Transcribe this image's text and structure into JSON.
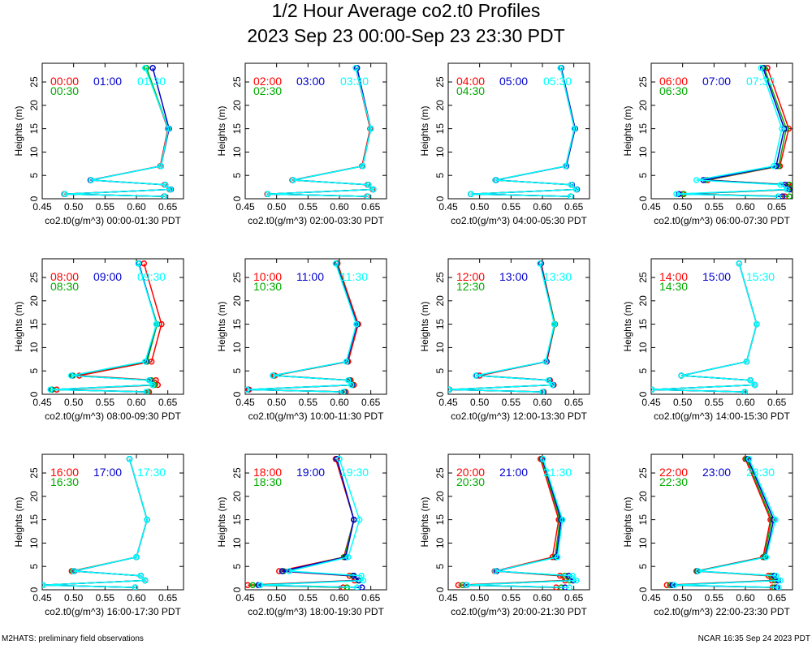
{
  "page": {
    "title_line1": "1/2 Hour Average co2.t0 Profiles",
    "title_line2": "2023 Sep 23 00:00-Sep 23 23:30 PDT",
    "footer_left": "M2HATS: preliminary field observations",
    "footer_right": "NCAR 16:35 Sep 24 2023 PDT"
  },
  "colors": {
    "c1": "#ff0000",
    "c2": "#0000cc",
    "c3": "#00ffff",
    "c4": "#00aa00"
  },
  "chart_data": [
    {
      "type": "line",
      "xlabel": "co2.t0(g/m^3) 00:00-01:30 PDT",
      "ylabel": "Heights (m)",
      "xlim": [
        0.45,
        0.675
      ],
      "ylim": [
        0,
        29
      ],
      "xticks": [
        "0.45",
        "0.50",
        "0.55",
        "0.60",
        "0.65"
      ],
      "yticks": [
        "0",
        "5",
        "10",
        "15",
        "20",
        "25"
      ],
      "heights": [
        0.5,
        1,
        2,
        3,
        4,
        7,
        15,
        28
      ],
      "series": [
        {
          "name": "00:00",
          "color": "red",
          "values": [
            0.644,
            0.485,
            0.653,
            0.645,
            0.527,
            0.638,
            0.65,
            0.615
          ]
        },
        {
          "name": "00:30",
          "color": "green",
          "values": [
            0.645,
            0.486,
            0.654,
            0.646,
            0.528,
            0.639,
            0.651,
            0.616
          ]
        },
        {
          "name": "01:00",
          "color": "blue",
          "values": [
            0.645,
            0.486,
            0.655,
            0.646,
            0.527,
            0.639,
            0.652,
            0.626
          ]
        },
        {
          "name": "01:30",
          "color": "cyan",
          "values": [
            0.645,
            0.486,
            0.654,
            0.646,
            0.528,
            0.639,
            0.651,
            0.614
          ]
        }
      ]
    },
    {
      "type": "line",
      "xlabel": "co2.t0(g/m^3) 02:00-03:30 PDT",
      "ylabel": "Heights (m)",
      "xlim": [
        0.45,
        0.675
      ],
      "ylim": [
        0,
        29
      ],
      "xticks": [
        "0.45",
        "0.50",
        "0.55",
        "0.60",
        "0.65"
      ],
      "yticks": [
        "0",
        "5",
        "10",
        "15",
        "20",
        "25"
      ],
      "heights": [
        0.5,
        1,
        2,
        3,
        4,
        7,
        15,
        28
      ],
      "series": [
        {
          "name": "02:00",
          "color": "red",
          "values": [
            0.644,
            0.485,
            0.653,
            0.645,
            0.525,
            0.636,
            0.649,
            0.626
          ]
        },
        {
          "name": "02:30",
          "color": "green",
          "values": [
            0.645,
            0.486,
            0.654,
            0.646,
            0.526,
            0.637,
            0.65,
            0.627
          ]
        },
        {
          "name": "03:00",
          "color": "blue",
          "values": [
            0.645,
            0.486,
            0.654,
            0.646,
            0.526,
            0.637,
            0.65,
            0.628
          ]
        },
        {
          "name": "03:30",
          "color": "cyan",
          "values": [
            0.645,
            0.486,
            0.654,
            0.646,
            0.526,
            0.637,
            0.65,
            0.626
          ]
        }
      ]
    },
    {
      "type": "line",
      "xlabel": "co2.t0(g/m^3) 04:00-05:30 PDT",
      "ylabel": "Heights (m)",
      "xlim": [
        0.45,
        0.675
      ],
      "ylim": [
        0,
        29
      ],
      "xticks": [
        "0.45",
        "0.50",
        "0.55",
        "0.60",
        "0.65"
      ],
      "yticks": [
        "0",
        "5",
        "10",
        "15",
        "20",
        "25"
      ],
      "heights": [
        0.5,
        1,
        2,
        3,
        4,
        7,
        15,
        28
      ],
      "series": [
        {
          "name": "04:00",
          "color": "red",
          "values": [
            0.645,
            0.486,
            0.654,
            0.646,
            0.525,
            0.637,
            0.651,
            0.629
          ]
        },
        {
          "name": "04:30",
          "color": "green",
          "values": [
            0.645,
            0.486,
            0.655,
            0.646,
            0.525,
            0.638,
            0.652,
            0.63
          ]
        },
        {
          "name": "05:00",
          "color": "blue",
          "values": [
            0.645,
            0.486,
            0.655,
            0.647,
            0.526,
            0.638,
            0.652,
            0.63
          ]
        },
        {
          "name": "05:30",
          "color": "cyan",
          "values": [
            0.645,
            0.486,
            0.654,
            0.646,
            0.525,
            0.637,
            0.651,
            0.629
          ]
        }
      ]
    },
    {
      "type": "line",
      "xlabel": "co2.t0(g/m^3) 06:00-07:30 PDT",
      "ylabel": "Heights (m)",
      "xlim": [
        0.45,
        0.675
      ],
      "ylim": [
        0,
        29
      ],
      "xticks": [
        "0.45",
        "0.50",
        "0.55",
        "0.60",
        "0.65"
      ],
      "yticks": [
        "0",
        "5",
        "10",
        "15",
        "20",
        "25"
      ],
      "heights": [
        0.5,
        1,
        2,
        3,
        4,
        7,
        15,
        28
      ],
      "series": [
        {
          "name": "06:00",
          "color": "red",
          "values": [
            0.663,
            0.5,
            0.673,
            0.668,
            0.54,
            0.655,
            0.669,
            0.635
          ]
        },
        {
          "name": "06:30",
          "color": "green",
          "values": [
            0.67,
            0.502,
            0.674,
            0.67,
            0.537,
            0.653,
            0.665,
            0.63
          ]
        },
        {
          "name": "07:00",
          "color": "blue",
          "values": [
            0.659,
            0.494,
            0.67,
            0.663,
            0.533,
            0.649,
            0.662,
            0.628
          ]
        },
        {
          "name": "07:30",
          "color": "cyan",
          "values": [
            0.652,
            0.49,
            0.666,
            0.656,
            0.522,
            0.645,
            0.658,
            0.625
          ]
        }
      ]
    },
    {
      "type": "line",
      "xlabel": "co2.t0(g/m^3) 08:00-09:30 PDT",
      "ylabel": "Heights (m)",
      "xlim": [
        0.45,
        0.675
      ],
      "ylim": [
        0,
        29
      ],
      "xticks": [
        "0.45",
        "0.50",
        "0.55",
        "0.60",
        "0.65"
      ],
      "yticks": [
        "0",
        "5",
        "10",
        "15",
        "20",
        "25"
      ],
      "heights": [
        0.5,
        1,
        2,
        3,
        4,
        7,
        15,
        28
      ],
      "series": [
        {
          "name": "08:00",
          "color": "red",
          "values": [
            0.62,
            0.473,
            0.634,
            0.631,
            0.509,
            0.624,
            0.64,
            0.612
          ]
        },
        {
          "name": "08:30",
          "color": "green",
          "values": [
            0.618,
            0.466,
            0.629,
            0.624,
            0.499,
            0.617,
            0.633,
            0.603
          ]
        },
        {
          "name": "09:00",
          "color": "blue",
          "values": [
            0.616,
            0.464,
            0.626,
            0.621,
            0.497,
            0.615,
            0.632,
            0.604
          ]
        },
        {
          "name": "09:30",
          "color": "cyan",
          "values": [
            0.616,
            0.463,
            0.626,
            0.62,
            0.496,
            0.614,
            0.632,
            0.603
          ]
        }
      ]
    },
    {
      "type": "line",
      "xlabel": "co2.t0(g/m^3) 10:00-11:30 PDT",
      "ylabel": "Heights (m)",
      "xlim": [
        0.45,
        0.675
      ],
      "ylim": [
        0,
        29
      ],
      "xticks": [
        "0.45",
        "0.50",
        "0.55",
        "0.60",
        "0.65"
      ],
      "yticks": [
        "0",
        "5",
        "10",
        "15",
        "20",
        "25"
      ],
      "heights": [
        0.5,
        1,
        2,
        3,
        4,
        7,
        15,
        28
      ],
      "series": [
        {
          "name": "10:00",
          "color": "red",
          "values": [
            0.61,
            0.456,
            0.623,
            0.618,
            0.497,
            0.614,
            0.63,
            0.597
          ]
        },
        {
          "name": "10:30",
          "color": "green",
          "values": [
            0.608,
            0.454,
            0.621,
            0.616,
            0.495,
            0.612,
            0.628,
            0.596
          ]
        },
        {
          "name": "11:00",
          "color": "blue",
          "values": [
            0.607,
            0.454,
            0.62,
            0.615,
            0.494,
            0.612,
            0.628,
            0.595
          ]
        },
        {
          "name": "11:30",
          "color": "cyan",
          "values": [
            0.606,
            0.453,
            0.619,
            0.614,
            0.494,
            0.611,
            0.627,
            0.594
          ]
        }
      ]
    },
    {
      "type": "line",
      "xlabel": "co2.t0(g/m^3) 12:00-13:30 PDT",
      "ylabel": "Heights (m)",
      "xlim": [
        0.45,
        0.675
      ],
      "ylim": [
        0,
        29
      ],
      "xticks": [
        "0.45",
        "0.50",
        "0.55",
        "0.60",
        "0.65"
      ],
      "yticks": [
        "0",
        "5",
        "10",
        "15",
        "20",
        "25"
      ],
      "heights": [
        0.5,
        1,
        2,
        3,
        4,
        7,
        15,
        28
      ],
      "series": [
        {
          "name": "12:00",
          "color": "red",
          "values": [
            0.602,
            0.452,
            0.618,
            0.612,
            0.5,
            0.607,
            0.62,
            0.598
          ]
        },
        {
          "name": "12:30",
          "color": "green",
          "values": [
            0.601,
            0.451,
            0.617,
            0.611,
            0.495,
            0.606,
            0.62,
            0.597
          ]
        },
        {
          "name": "13:00",
          "color": "blue",
          "values": [
            0.601,
            0.451,
            0.617,
            0.611,
            0.495,
            0.606,
            0.619,
            0.597
          ]
        },
        {
          "name": "13:30",
          "color": "cyan",
          "values": [
            0.6,
            0.451,
            0.616,
            0.61,
            0.494,
            0.605,
            0.619,
            0.596
          ]
        }
      ]
    },
    {
      "type": "line",
      "xlabel": "co2.t0(g/m^3) 14:00-15:30 PDT",
      "ylabel": "Heights (m)",
      "xlim": [
        0.45,
        0.675
      ],
      "ylim": [
        0,
        29
      ],
      "xticks": [
        "0.45",
        "0.50",
        "0.55",
        "0.60",
        "0.65"
      ],
      "yticks": [
        "0",
        "5",
        "10",
        "15",
        "20",
        "25"
      ],
      "heights": [
        0.5,
        1,
        2,
        3,
        4,
        7,
        15,
        28
      ],
      "series": [
        {
          "name": "14:00",
          "color": "red",
          "values": [
            0.599,
            0.451,
            0.615,
            0.608,
            0.498,
            0.602,
            0.618,
            0.59
          ]
        },
        {
          "name": "14:30",
          "color": "green",
          "values": [
            0.599,
            0.451,
            0.615,
            0.608,
            0.498,
            0.602,
            0.618,
            0.59
          ]
        },
        {
          "name": "15:00",
          "color": "blue",
          "values": [
            0.599,
            0.451,
            0.615,
            0.608,
            0.498,
            0.602,
            0.618,
            0.59
          ]
        },
        {
          "name": "15:30",
          "color": "cyan",
          "values": [
            0.599,
            0.451,
            0.615,
            0.608,
            0.498,
            0.602,
            0.618,
            0.59
          ]
        }
      ]
    },
    {
      "type": "line",
      "xlabel": "co2.t0(g/m^3) 16:00-17:30 PDT",
      "ylabel": "Heights (m)",
      "xlim": [
        0.45,
        0.675
      ],
      "ylim": [
        0,
        29
      ],
      "xticks": [
        "0.45",
        "0.50",
        "0.55",
        "0.60",
        "0.65"
      ],
      "yticks": [
        "0",
        "5",
        "10",
        "15",
        "20",
        "25"
      ],
      "heights": [
        0.5,
        1,
        2,
        3,
        4,
        7,
        15,
        28
      ],
      "series": [
        {
          "name": "16:00",
          "color": "red",
          "values": [
            0.598,
            0.451,
            0.614,
            0.607,
            0.497,
            0.6,
            0.617,
            0.589
          ]
        },
        {
          "name": "16:30",
          "color": "green",
          "values": [
            0.598,
            0.451,
            0.614,
            0.607,
            0.499,
            0.6,
            0.617,
            0.589
          ]
        },
        {
          "name": "17:00",
          "color": "blue",
          "values": [
            0.598,
            0.451,
            0.614,
            0.607,
            0.501,
            0.6,
            0.617,
            0.589
          ]
        },
        {
          "name": "17:30",
          "color": "cyan",
          "values": [
            0.598,
            0.451,
            0.614,
            0.607,
            0.5,
            0.6,
            0.617,
            0.589
          ]
        }
      ]
    },
    {
      "type": "line",
      "xlabel": "co2.t0(g/m^3) 18:00-19:30 PDT",
      "ylabel": "Heights (m)",
      "xlim": [
        0.45,
        0.675
      ],
      "ylim": [
        0,
        29
      ],
      "xticks": [
        "0.45",
        "0.50",
        "0.55",
        "0.60",
        "0.65"
      ],
      "yticks": [
        "0",
        "5",
        "10",
        "15",
        "20",
        "25"
      ],
      "heights": [
        0.5,
        1,
        2,
        3,
        4,
        7,
        15,
        28
      ],
      "series": [
        {
          "name": "18:00",
          "color": "red",
          "values": [
            0.606,
            0.454,
            0.624,
            0.616,
            0.504,
            0.607,
            0.623,
            0.594
          ]
        },
        {
          "name": "18:30",
          "color": "green",
          "values": [
            0.612,
            0.462,
            0.63,
            0.621,
            0.511,
            0.608,
            0.623,
            0.596
          ]
        },
        {
          "name": "19:00",
          "color": "blue",
          "values": [
            0.636,
            0.471,
            0.631,
            0.623,
            0.509,
            0.61,
            0.623,
            0.596
          ]
        },
        {
          "name": "19:30",
          "color": "cyan",
          "values": [
            0.628,
            0.474,
            0.638,
            0.635,
            0.52,
            0.614,
            0.632,
            0.6
          ]
        }
      ]
    },
    {
      "type": "line",
      "xlabel": "co2.t0(g/m^3) 20:00-21:30 PDT",
      "ylabel": "Heights (m)",
      "xlim": [
        0.45,
        0.675
      ],
      "ylim": [
        0,
        29
      ],
      "xticks": [
        "0.45",
        "0.50",
        "0.55",
        "0.60",
        "0.65"
      ],
      "yticks": [
        "0",
        "5",
        "10",
        "15",
        "20",
        "25"
      ],
      "heights": [
        0.5,
        1,
        2,
        3,
        4,
        7,
        15,
        28
      ],
      "series": [
        {
          "name": "20:00",
          "color": "red",
          "values": [
            0.622,
            0.466,
            0.636,
            0.628,
            0.524,
            0.616,
            0.626,
            0.597
          ]
        },
        {
          "name": "20:30",
          "color": "green",
          "values": [
            0.63,
            0.473,
            0.643,
            0.636,
            0.527,
            0.62,
            0.628,
            0.599
          ]
        },
        {
          "name": "21:00",
          "color": "blue",
          "values": [
            0.636,
            0.479,
            0.649,
            0.642,
            0.527,
            0.622,
            0.63,
            0.6
          ]
        },
        {
          "name": "21:30",
          "color": "cyan",
          "values": [
            0.643,
            0.48,
            0.654,
            0.648,
            0.525,
            0.624,
            0.632,
            0.601
          ]
        }
      ]
    },
    {
      "type": "line",
      "xlabel": "co2.t0(g/m^3) 22:00-23:30 PDT",
      "ylabel": "Heights (m)",
      "xlim": [
        0.45,
        0.675
      ],
      "ylim": [
        0,
        29
      ],
      "xticks": [
        "0.45",
        "0.50",
        "0.55",
        "0.60",
        "0.65"
      ],
      "yticks": [
        "0",
        "5",
        "10",
        "15",
        "20",
        "25"
      ],
      "heights": [
        0.5,
        1,
        2,
        3,
        4,
        7,
        15,
        28
      ],
      "series": [
        {
          "name": "22:00",
          "color": "red",
          "values": [
            0.643,
            0.475,
            0.642,
            0.637,
            0.522,
            0.628,
            0.64,
            0.6
          ]
        },
        {
          "name": "22:30",
          "color": "green",
          "values": [
            0.646,
            0.48,
            0.647,
            0.641,
            0.523,
            0.63,
            0.642,
            0.602
          ]
        },
        {
          "name": "23:00",
          "color": "blue",
          "values": [
            0.65,
            0.484,
            0.652,
            0.646,
            0.524,
            0.632,
            0.645,
            0.604
          ]
        },
        {
          "name": "23:30",
          "color": "cyan",
          "values": [
            0.653,
            0.487,
            0.656,
            0.649,
            0.525,
            0.633,
            0.648,
            0.606
          ]
        }
      ]
    }
  ]
}
